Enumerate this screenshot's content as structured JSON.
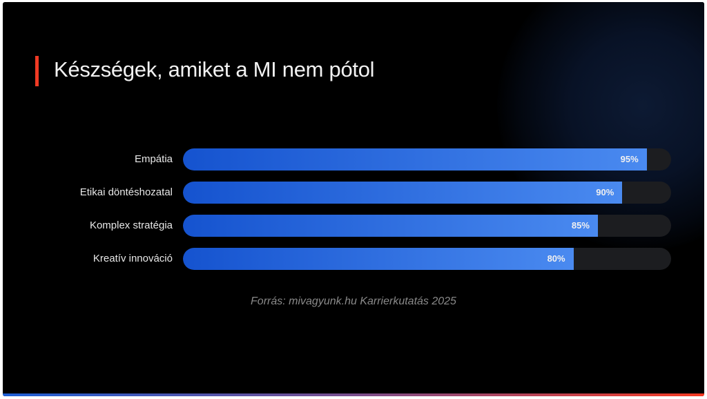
{
  "title": "Készségek, amiket a MI nem pótol",
  "source": "Forrás: mivagyunk.hu Karrierkutatás 2025",
  "colors": {
    "accent": "#f03a24",
    "bar_start": "#1553cf",
    "bar_end": "#4a8af0",
    "track": "#1c1d20",
    "background": "#000000"
  },
  "chart_data": {
    "type": "bar",
    "orientation": "horizontal",
    "categories": [
      "Empátia",
      "Etikai döntéshozatal",
      "Komplex stratégia",
      "Kreatív innováció"
    ],
    "values": [
      95,
      90,
      85,
      80
    ],
    "value_labels": [
      "95%",
      "90%",
      "85%",
      "80%"
    ],
    "xlim": [
      0,
      100
    ],
    "grid": false,
    "title": "Készségek, amiket a MI nem pótol"
  }
}
